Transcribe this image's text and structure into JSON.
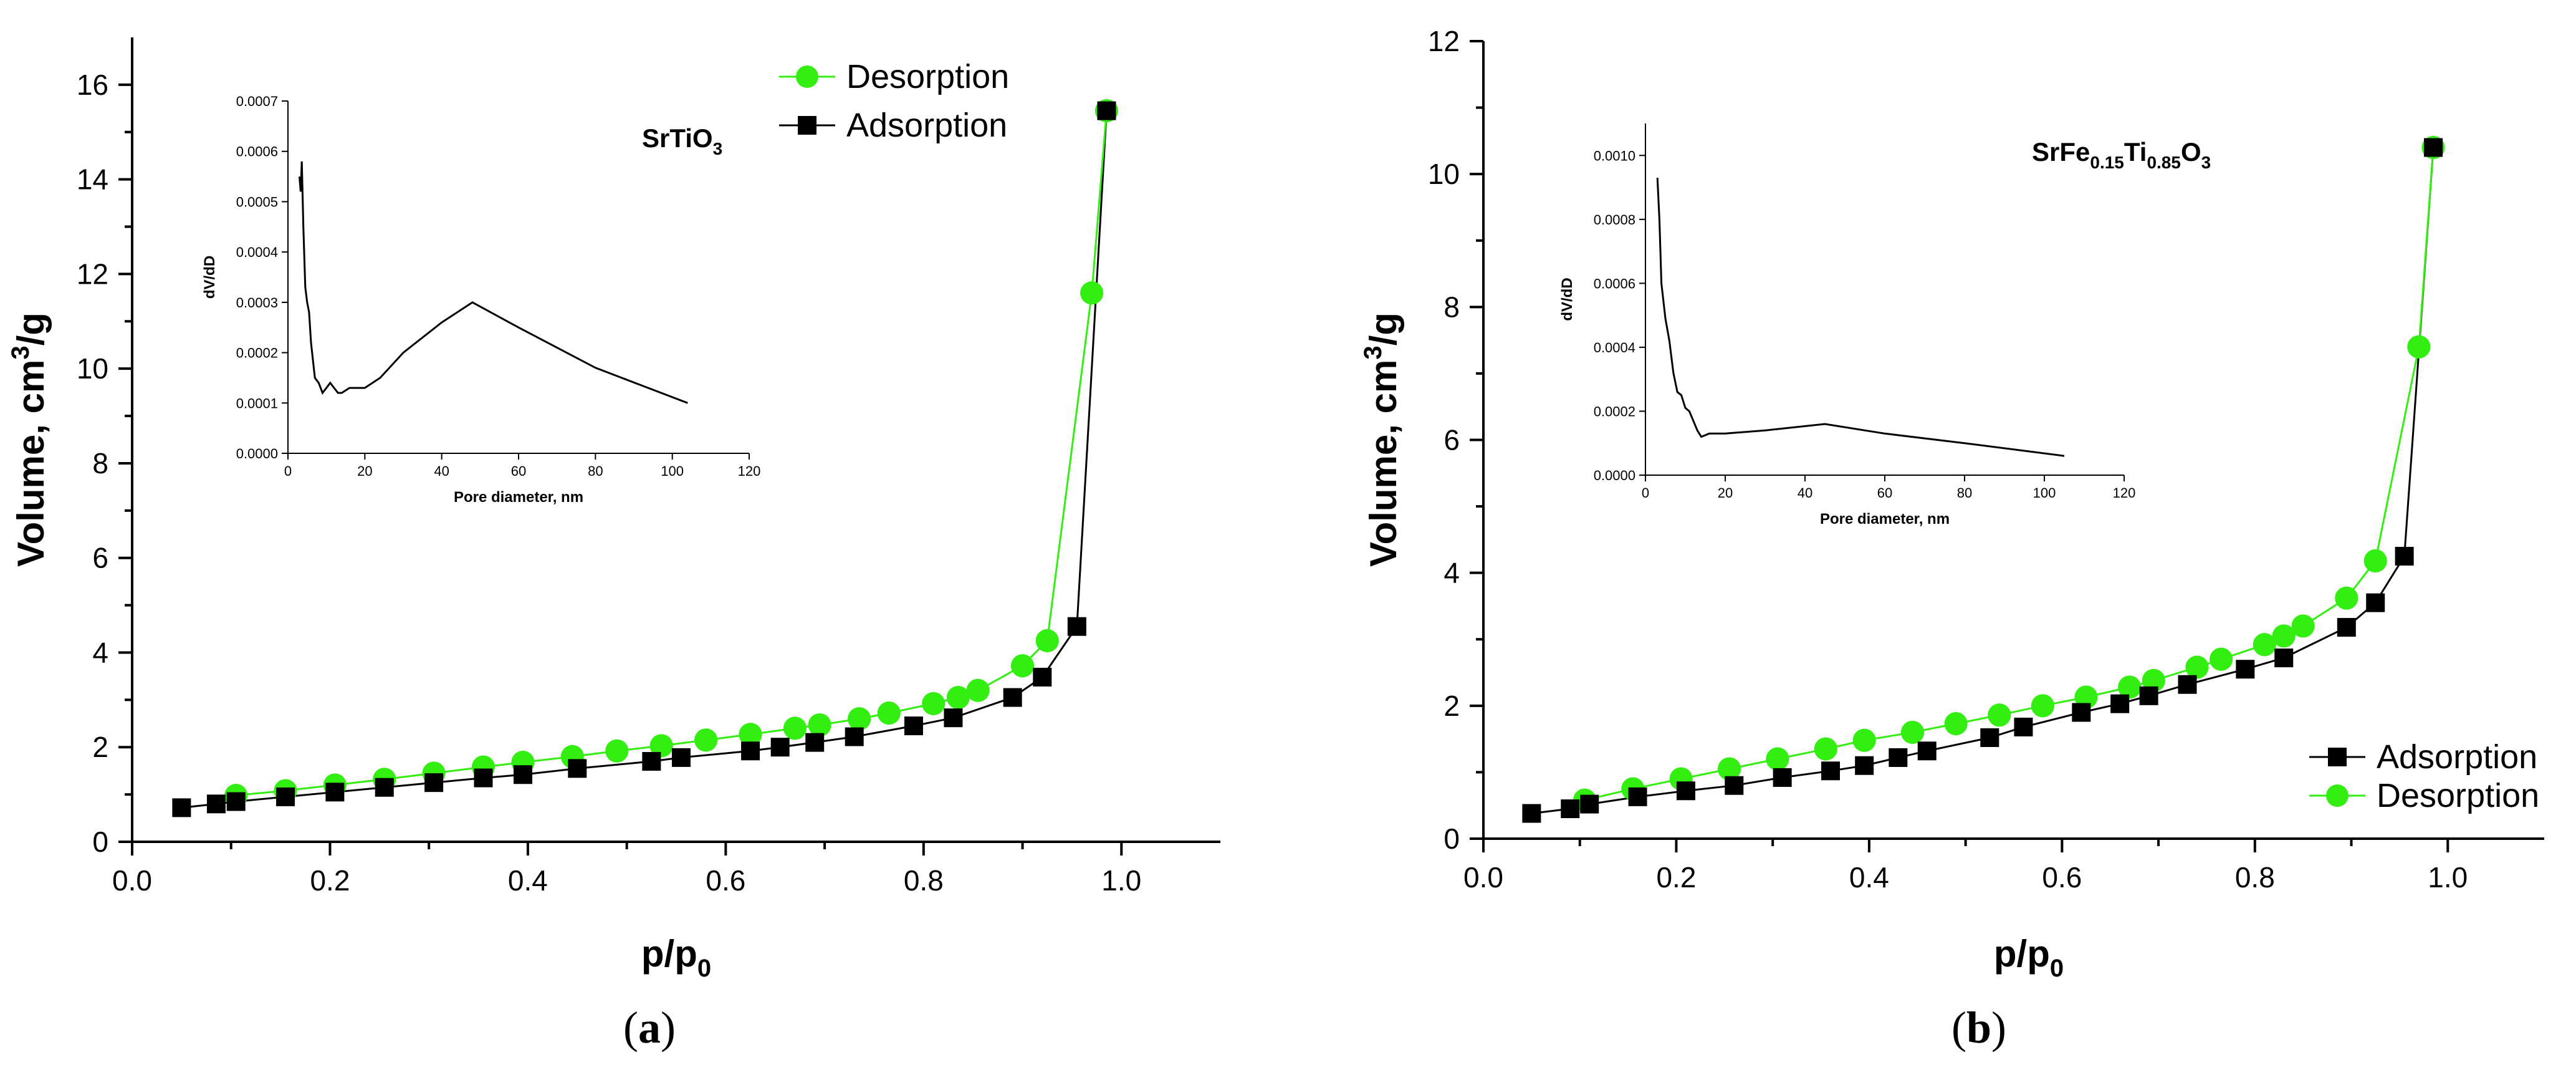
{
  "chart_data": [
    {
      "type": "line",
      "caption": "(a)",
      "caption_letter": "a",
      "xlabel": "p/p",
      "xlabel_sub": "0",
      "ylabel": "Volume, cm",
      "ylabel_sup": "3",
      "ylabel_tail": "/g",
      "xlim": [
        0.0,
        1.1
      ],
      "ylim": [
        0,
        17
      ],
      "xticks": [
        0.0,
        0.2,
        0.4,
        0.6,
        0.8,
        1.0
      ],
      "xtick_labels": [
        "0.0",
        "0.2",
        "0.4",
        "0.6",
        "0.8",
        "1.0"
      ],
      "yticks": [
        0,
        2,
        4,
        6,
        8,
        10,
        12,
        14,
        16
      ],
      "ytick_labels": [
        "0",
        "2",
        "4",
        "6",
        "8",
        "10",
        "12",
        "14",
        "16"
      ],
      "legend": [
        {
          "name": "Desorption",
          "color": "#33ee11",
          "marker": "circle"
        },
        {
          "name": "Adsorption",
          "color": "#000000",
          "marker": "square"
        }
      ],
      "series": [
        {
          "name": "Adsorption",
          "color": "#000000",
          "marker": "square",
          "x": [
            0.05,
            0.085,
            0.105,
            0.155,
            0.205,
            0.255,
            0.305,
            0.355,
            0.395,
            0.45,
            0.525,
            0.555,
            0.625,
            0.655,
            0.69,
            0.73,
            0.79,
            0.83,
            0.89,
            0.92,
            0.955,
            0.985
          ],
          "y": [
            0.72,
            0.8,
            0.85,
            0.95,
            1.05,
            1.15,
            1.25,
            1.35,
            1.42,
            1.55,
            1.7,
            1.78,
            1.92,
            2.0,
            2.1,
            2.22,
            2.45,
            2.62,
            3.05,
            3.48,
            4.55,
            15.45
          ]
        },
        {
          "name": "Desorption",
          "color": "#33ee11",
          "marker": "circle",
          "x": [
            0.105,
            0.155,
            0.205,
            0.255,
            0.305,
            0.355,
            0.395,
            0.445,
            0.49,
            0.535,
            0.58,
            0.625,
            0.67,
            0.695,
            0.735,
            0.765,
            0.81,
            0.835,
            0.855,
            0.9,
            0.925,
            0.97,
            0.985
          ],
          "y": [
            0.98,
            1.08,
            1.2,
            1.32,
            1.45,
            1.58,
            1.68,
            1.8,
            1.92,
            2.03,
            2.15,
            2.27,
            2.4,
            2.47,
            2.6,
            2.72,
            2.92,
            3.05,
            3.2,
            3.72,
            4.25,
            11.6,
            15.45
          ]
        }
      ],
      "inset": {
        "label_main": "SrTiO",
        "label_sub": "3",
        "label_segments": [
          {
            "t": "SrTiO",
            "sub": false
          },
          {
            "t": "3",
            "sub": true
          }
        ],
        "xlabel": "Pore diameter, nm",
        "ylabel": "dV/dD",
        "xlim": [
          0,
          120
        ],
        "ylim": [
          0,
          0.0007
        ],
        "xticks": [
          0,
          20,
          40,
          60,
          80,
          100,
          120
        ],
        "xtick_labels": [
          "0",
          "20",
          "40",
          "60",
          "80",
          "100",
          "120"
        ],
        "yticks": [
          0,
          0.0001,
          0.0002,
          0.0003,
          0.0004,
          0.0005,
          0.0006,
          0.0007
        ],
        "ytick_labels": [
          "0.0000",
          "0.0001",
          "0.0002",
          "0.0003",
          "0.0004",
          "0.0005",
          "0.0006",
          "0.0007"
        ],
        "x": [
          3,
          3.3,
          3.6,
          4,
          4.5,
          5,
          5.5,
          6,
          7,
          8,
          9,
          10,
          11,
          12,
          13,
          14,
          16,
          18,
          20,
          24,
          30,
          40,
          48,
          60,
          80,
          104
        ],
        "y": [
          0.00055,
          0.00052,
          0.00058,
          0.00045,
          0.00033,
          0.0003,
          0.00028,
          0.00022,
          0.00015,
          0.00014,
          0.00012,
          0.00013,
          0.00014,
          0.00013,
          0.00012,
          0.00012,
          0.00013,
          0.00013,
          0.00013,
          0.00015,
          0.0002,
          0.00026,
          0.0003,
          0.00025,
          0.00017,
          0.0001
        ]
      }
    },
    {
      "type": "line",
      "caption": "(b)",
      "caption_letter": "b",
      "xlabel": "p/p",
      "xlabel_sub": "0",
      "ylabel": "Volume, cm",
      "ylabel_sup": "3",
      "ylabel_tail": "/g",
      "xlim": [
        0.0,
        1.1
      ],
      "ylim": [
        0,
        12
      ],
      "xticks": [
        0.0,
        0.2,
        0.4,
        0.6,
        0.8,
        1.0
      ],
      "xtick_labels": [
        "0.0",
        "0.2",
        "0.4",
        "0.6",
        "0.8",
        "1.0"
      ],
      "yticks": [
        0,
        2,
        4,
        6,
        8,
        10,
        12
      ],
      "ytick_labels": [
        "0",
        "2",
        "4",
        "6",
        "8",
        "10",
        "12"
      ],
      "legend": [
        {
          "name": "Adsorption",
          "color": "#000000",
          "marker": "square"
        },
        {
          "name": "Desorption",
          "color": "#33ee11",
          "marker": "circle"
        }
      ],
      "series": [
        {
          "name": "Adsorption",
          "color": "#000000",
          "marker": "square",
          "x": [
            0.05,
            0.09,
            0.11,
            0.16,
            0.21,
            0.26,
            0.31,
            0.36,
            0.395,
            0.43,
            0.46,
            0.525,
            0.56,
            0.62,
            0.66,
            0.69,
            0.73,
            0.79,
            0.83,
            0.895,
            0.925,
            0.955,
            0.985
          ],
          "y": [
            0.38,
            0.45,
            0.52,
            0.63,
            0.72,
            0.8,
            0.92,
            1.02,
            1.1,
            1.22,
            1.32,
            1.52,
            1.68,
            1.9,
            2.03,
            2.15,
            2.32,
            2.55,
            2.72,
            3.18,
            3.55,
            4.25,
            10.4
          ]
        },
        {
          "name": "Desorption",
          "color": "#33ee11",
          "marker": "circle",
          "x": [
            0.105,
            0.155,
            0.205,
            0.255,
            0.305,
            0.355,
            0.395,
            0.445,
            0.49,
            0.535,
            0.58,
            0.625,
            0.67,
            0.695,
            0.74,
            0.765,
            0.81,
            0.83,
            0.85,
            0.895,
            0.925,
            0.97,
            0.985
          ],
          "y": [
            0.58,
            0.75,
            0.9,
            1.05,
            1.2,
            1.35,
            1.48,
            1.6,
            1.73,
            1.86,
            2.0,
            2.13,
            2.28,
            2.38,
            2.58,
            2.7,
            2.92,
            3.05,
            3.2,
            3.62,
            4.18,
            7.4,
            10.4
          ]
        }
      ],
      "inset": {
        "label_main": "SrFe",
        "label_sub": "0.15",
        "label_segments": [
          {
            "t": "SrFe",
            "sub": false
          },
          {
            "t": "0.15",
            "sub": true
          },
          {
            "t": "Ti",
            "sub": false
          },
          {
            "t": "0.85",
            "sub": true
          },
          {
            "t": "O",
            "sub": false
          },
          {
            "t": "3",
            "sub": true
          }
        ],
        "xlabel": "Pore diameter, nm",
        "ylabel": "dV/dD",
        "xlim": [
          0,
          120
        ],
        "ylim": [
          0,
          0.0011
        ],
        "xticks": [
          0,
          20,
          40,
          60,
          80,
          100,
          120
        ],
        "xtick_labels": [
          "0",
          "20",
          "40",
          "60",
          "80",
          "100",
          "120"
        ],
        "yticks": [
          0,
          0.0002,
          0.0004,
          0.0006,
          0.0008,
          0.001
        ],
        "ytick_labels": [
          "0.0000",
          "0.0002",
          "0.0004",
          "0.0006",
          "0.0008",
          "0.0010"
        ],
        "x": [
          3,
          3.5,
          4,
          5,
          6,
          7,
          8,
          9,
          10,
          11,
          12,
          13,
          14,
          16,
          20,
          30,
          45,
          60,
          80,
          105
        ],
        "y": [
          0.00093,
          0.0008,
          0.0006,
          0.00049,
          0.00042,
          0.00032,
          0.00026,
          0.00025,
          0.00021,
          0.0002,
          0.00017,
          0.00014,
          0.00012,
          0.00013,
          0.00013,
          0.00014,
          0.00016,
          0.00013,
          0.0001,
          6e-05
        ]
      }
    }
  ]
}
